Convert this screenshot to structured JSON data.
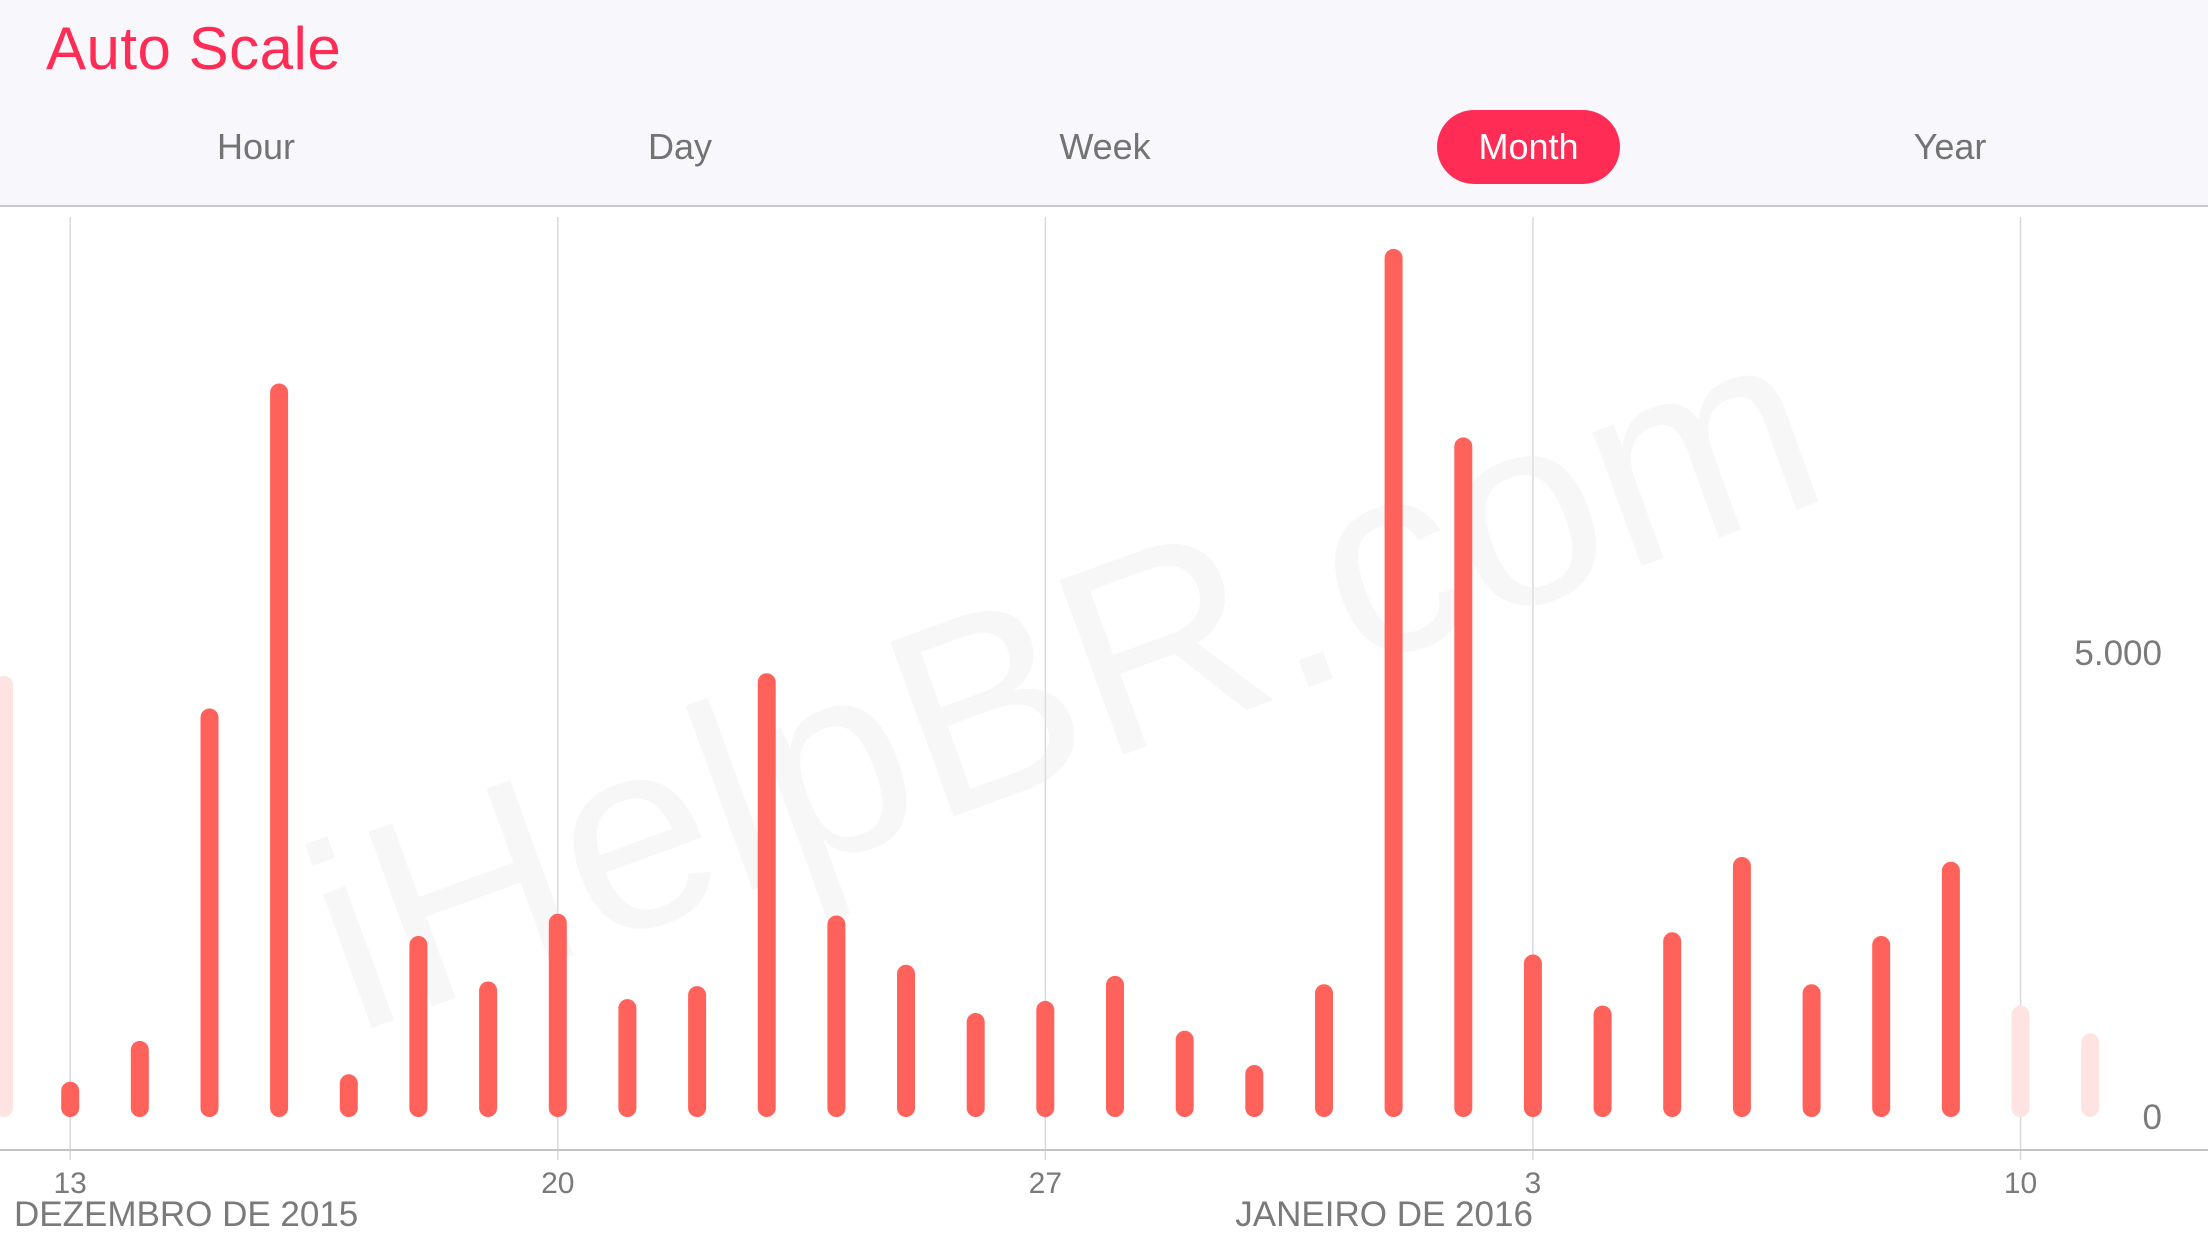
{
  "header": {
    "title": "Auto Scale",
    "segments": [
      {
        "label": "Hour",
        "active": false
      },
      {
        "label": "Day",
        "active": false
      },
      {
        "label": "Week",
        "active": false
      },
      {
        "label": "Month",
        "active": true
      },
      {
        "label": "Year",
        "active": false
      }
    ]
  },
  "colors": {
    "accent": "#ff2d55",
    "bar": "#ff625a",
    "faded_bar": "#fde4e2",
    "gridline": "#d9d9d9",
    "axis_text": "#7a7a7a",
    "header_bg": "#f8f8fc"
  },
  "watermark": "iHelpBR.com",
  "chart_data": {
    "type": "bar",
    "y_ticks": [
      {
        "value": 0,
        "label": "0"
      },
      {
        "value": 5000,
        "label": "5.000"
      }
    ],
    "ylim": [
      0,
      9500
    ],
    "x_ticks": [
      {
        "day": 13,
        "label": "13"
      },
      {
        "day": 20,
        "label": "20"
      },
      {
        "day": 27,
        "label": "27"
      },
      {
        "day": 34,
        "label": "3"
      },
      {
        "day": 41,
        "label": "10"
      }
    ],
    "month_labels": [
      {
        "day": 13,
        "label": "DEZEMBRO DE 2015"
      },
      {
        "day": 34,
        "label": "JANEIRO DE 2016"
      }
    ],
    "xlim": [
      12.05,
      42.5
    ],
    "bars": [
      {
        "day": 12.05,
        "value": 4750,
        "faded": true
      },
      {
        "day": 13,
        "value": 380,
        "faded": false
      },
      {
        "day": 14,
        "value": 820,
        "faded": false
      },
      {
        "day": 15,
        "value": 4400,
        "faded": false
      },
      {
        "day": 16,
        "value": 7900,
        "faded": false
      },
      {
        "day": 17,
        "value": 460,
        "faded": false
      },
      {
        "day": 18,
        "value": 1950,
        "faded": false
      },
      {
        "day": 19,
        "value": 1460,
        "faded": false
      },
      {
        "day": 20,
        "value": 2190,
        "faded": false
      },
      {
        "day": 21,
        "value": 1270,
        "faded": false
      },
      {
        "day": 22,
        "value": 1410,
        "faded": false
      },
      {
        "day": 23,
        "value": 4780,
        "faded": false
      },
      {
        "day": 24,
        "value": 2170,
        "faded": false
      },
      {
        "day": 25,
        "value": 1640,
        "faded": false
      },
      {
        "day": 26,
        "value": 1120,
        "faded": false
      },
      {
        "day": 27,
        "value": 1250,
        "faded": false
      },
      {
        "day": 28,
        "value": 1520,
        "faded": false
      },
      {
        "day": 29,
        "value": 930,
        "faded": false
      },
      {
        "day": 30,
        "value": 560,
        "faded": false
      },
      {
        "day": 31,
        "value": 1430,
        "faded": false
      },
      {
        "day": 32,
        "value": 9350,
        "faded": false
      },
      {
        "day": 33,
        "value": 7320,
        "faded": false
      },
      {
        "day": 34,
        "value": 1750,
        "faded": false
      },
      {
        "day": 35,
        "value": 1200,
        "faded": false
      },
      {
        "day": 36,
        "value": 1990,
        "faded": false
      },
      {
        "day": 37,
        "value": 2800,
        "faded": false
      },
      {
        "day": 38,
        "value": 1430,
        "faded": false
      },
      {
        "day": 39,
        "value": 1950,
        "faded": false
      },
      {
        "day": 40,
        "value": 2750,
        "faded": false
      },
      {
        "day": 41,
        "value": 1200,
        "faded": true
      },
      {
        "day": 42,
        "value": 900,
        "faded": true
      }
    ]
  }
}
